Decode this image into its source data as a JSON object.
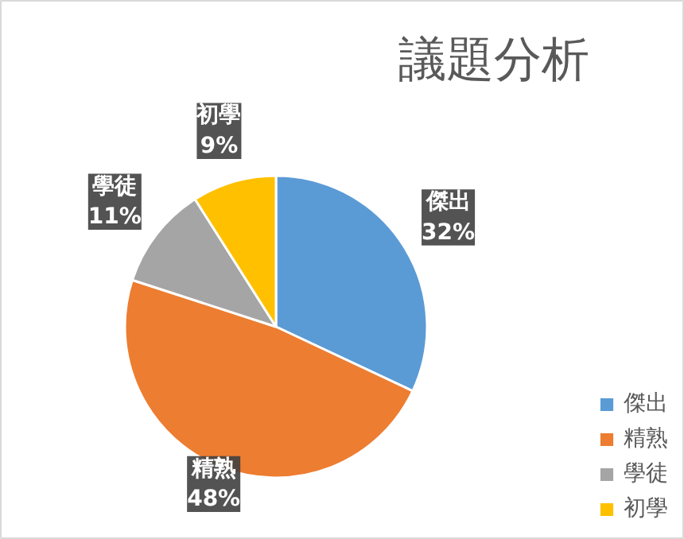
{
  "chart_data": {
    "type": "pie",
    "title": "議題分析",
    "categories": [
      "傑出",
      "精熟",
      "學徒",
      "初學"
    ],
    "values": [
      32,
      48,
      11,
      9
    ],
    "colors": [
      "#5b9bd5",
      "#ed7d31",
      "#a5a5a5",
      "#ffc000"
    ],
    "value_labels": [
      "32%",
      "48%",
      "11%",
      "9%"
    ],
    "legend": "bottom right"
  }
}
